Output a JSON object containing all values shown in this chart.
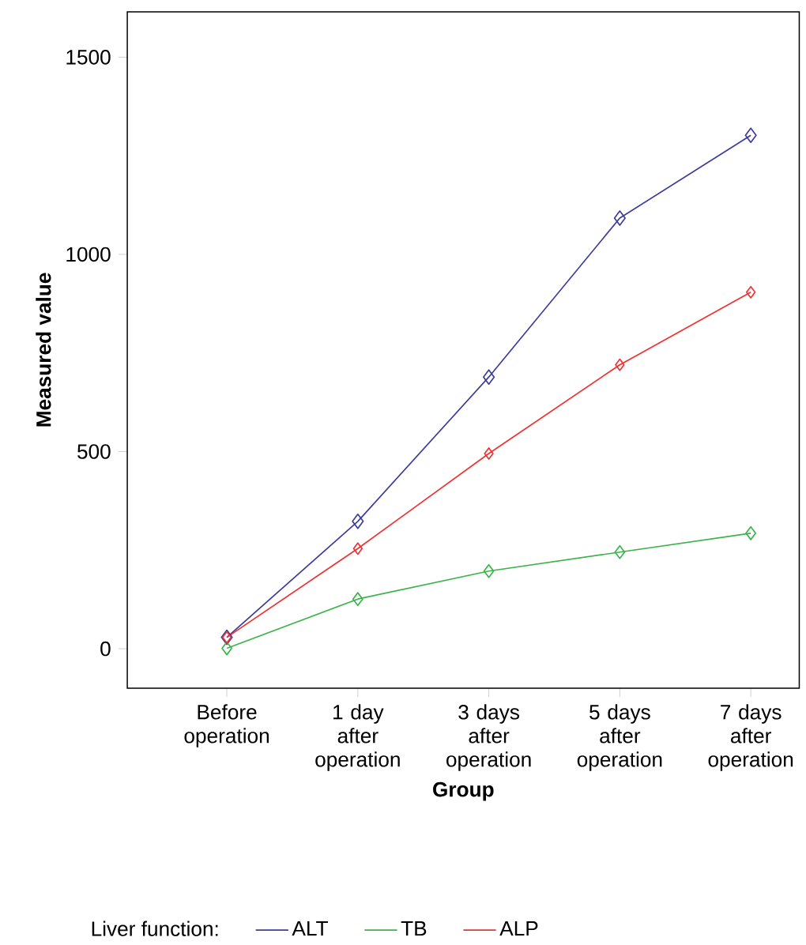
{
  "chart_data": {
    "type": "line",
    "xlabel": "Group",
    "ylabel": "Measured value",
    "legend_title": "Liver function:",
    "categories": [
      "Before operation",
      "1 day after operation",
      "3 days after operation",
      "5 days after operation",
      "7 days after operation"
    ],
    "series": [
      {
        "name": "ALT",
        "color": "#3c3c9c",
        "values": [
          29,
          323,
          689,
          1092,
          1302
        ]
      },
      {
        "name": "TB",
        "color": "#3cb44a",
        "values": [
          1,
          126,
          197,
          245,
          293
        ]
      },
      {
        "name": "ALP",
        "color": "#f03232",
        "values": [
          29,
          254,
          495,
          720,
          904
        ]
      }
    ],
    "ylim": [
      -100,
      1615
    ],
    "yticks": [
      0,
      500,
      1000,
      1500
    ],
    "legend": "bottom",
    "marker": "diamond",
    "line_style": "solid"
  }
}
